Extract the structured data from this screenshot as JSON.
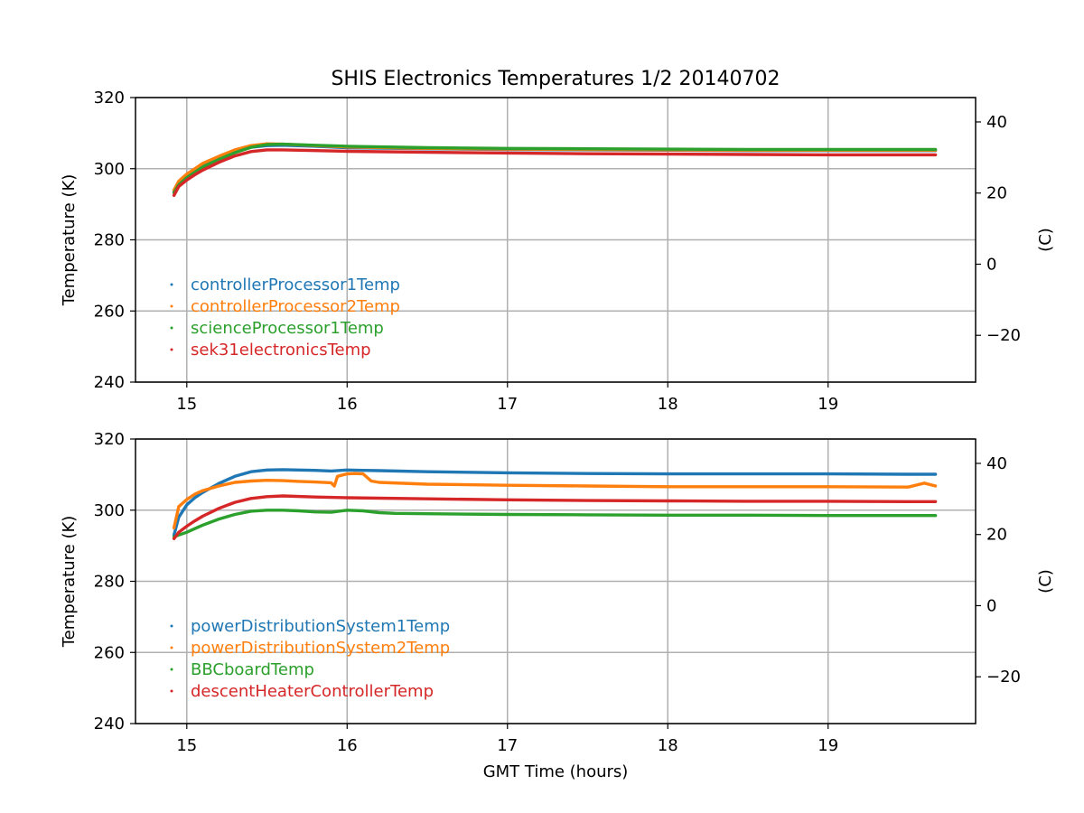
{
  "title": "SHIS Electronics Temperatures 1/2 20140702",
  "xlabel": "GMT Time (hours)",
  "colors": {
    "blue": "#1f77b4",
    "orange": "#ff7f0e",
    "green": "#2ca02c",
    "red": "#d62728"
  },
  "chart_data": [
    {
      "type": "line",
      "ylabel": "Temperature (K)",
      "ylabel_right": "(C)",
      "xlim": [
        14.68,
        19.92
      ],
      "ylim": [
        240,
        320
      ],
      "xticks": [
        15,
        16,
        17,
        18,
        19
      ],
      "yticks": [
        240,
        260,
        280,
        300,
        320
      ],
      "yticks_right": [
        -20,
        0,
        20,
        40
      ],
      "grid": true,
      "legend_position": "lower-left",
      "series": [
        {
          "name": "controllerProcessor1Temp",
          "color": "#1f77b4",
          "x": [
            14.92,
            14.95,
            15.0,
            15.05,
            15.1,
            15.2,
            15.3,
            15.4,
            15.5,
            15.6,
            15.8,
            16.0,
            16.5,
            17.0,
            17.5,
            18.0,
            18.5,
            19.0,
            19.5,
            19.67
          ],
          "y": [
            293.5,
            296,
            298,
            299.5,
            301,
            303,
            304.8,
            306,
            306.5,
            306.6,
            306.3,
            305.9,
            305.6,
            305.4,
            305.3,
            305.2,
            305.1,
            305.1,
            305.1,
            305.1
          ]
        },
        {
          "name": "controllerProcessor2Temp",
          "color": "#ff7f0e",
          "x": [
            14.92,
            14.95,
            15.0,
            15.05,
            15.1,
            15.2,
            15.3,
            15.4,
            15.5,
            15.6,
            15.8,
            16.0,
            16.5,
            17.0,
            17.5,
            18.0,
            18.5,
            19.0,
            19.5,
            19.67
          ],
          "y": [
            294,
            296.5,
            298.5,
            300,
            301.5,
            303.5,
            305.3,
            306.5,
            307,
            306.9,
            306.5,
            306.1,
            305.7,
            305.5,
            305.4,
            305.3,
            305.2,
            305.2,
            305.2,
            305.2
          ]
        },
        {
          "name": "scienceProcessor1Temp",
          "color": "#2ca02c",
          "x": [
            14.92,
            14.95,
            15.0,
            15.05,
            15.1,
            15.2,
            15.3,
            15.4,
            15.5,
            15.6,
            15.8,
            16.0,
            16.5,
            17.0,
            17.5,
            18.0,
            18.5,
            19.0,
            19.5,
            19.67
          ],
          "y": [
            293.2,
            295.5,
            297.5,
            299,
            300.5,
            302.6,
            304.5,
            306,
            306.8,
            306.9,
            306.6,
            306.3,
            305.9,
            305.7,
            305.6,
            305.5,
            305.4,
            305.4,
            305.4,
            305.4
          ]
        },
        {
          "name": "sek31electronicsTemp",
          "color": "#d62728",
          "x": [
            14.92,
            14.95,
            15.0,
            15.05,
            15.1,
            15.2,
            15.3,
            15.4,
            15.5,
            15.6,
            15.8,
            16.0,
            16.5,
            17.0,
            17.5,
            18.0,
            18.5,
            19.0,
            19.5,
            19.67
          ],
          "y": [
            292.5,
            295,
            296.8,
            298.3,
            299.6,
            301.8,
            303.6,
            304.8,
            305.3,
            305.3,
            305.1,
            304.9,
            304.6,
            304.4,
            304.2,
            304.1,
            304.0,
            303.9,
            303.9,
            303.9
          ]
        }
      ]
    },
    {
      "type": "line",
      "ylabel": "Temperature (K)",
      "ylabel_right": "(C)",
      "xlim": [
        14.68,
        19.92
      ],
      "ylim": [
        240,
        320
      ],
      "xticks": [
        15,
        16,
        17,
        18,
        19
      ],
      "yticks": [
        240,
        260,
        280,
        300,
        320
      ],
      "yticks_right": [
        -20,
        0,
        20,
        40
      ],
      "grid": true,
      "legend_position": "lower-left",
      "series": [
        {
          "name": "powerDistributionSystem1Temp",
          "color": "#1f77b4",
          "x": [
            14.92,
            14.95,
            15.0,
            15.05,
            15.1,
            15.2,
            15.3,
            15.4,
            15.5,
            15.6,
            15.7,
            15.8,
            15.9,
            16.0,
            16.1,
            16.2,
            16.5,
            17.0,
            17.5,
            18.0,
            18.5,
            19.0,
            19.5,
            19.67
          ],
          "y": [
            293,
            298,
            301.5,
            303.5,
            305,
            307.5,
            309.5,
            310.8,
            311.3,
            311.4,
            311.3,
            311.2,
            311.0,
            311.3,
            311.2,
            311.1,
            310.8,
            310.5,
            310.3,
            310.2,
            310.2,
            310.2,
            310.1,
            310.1
          ]
        },
        {
          "name": "powerDistributionSystem2Temp",
          "color": "#ff7f0e",
          "x": [
            14.92,
            14.95,
            15.0,
            15.05,
            15.1,
            15.2,
            15.3,
            15.4,
            15.5,
            15.6,
            15.7,
            15.8,
            15.9,
            15.92,
            15.94,
            16.0,
            16.05,
            16.1,
            16.15,
            16.2,
            16.5,
            17.0,
            17.5,
            18.0,
            18.5,
            19.0,
            19.5,
            19.6,
            19.67
          ],
          "y": [
            295,
            301,
            303,
            304.5,
            305.5,
            306.8,
            307.8,
            308.2,
            308.4,
            308.3,
            308.1,
            307.9,
            307.7,
            306.8,
            309.5,
            310.2,
            310.3,
            310.2,
            308.2,
            307.8,
            307.3,
            307.0,
            306.8,
            306.6,
            306.6,
            306.6,
            306.5,
            307.6,
            306.8
          ]
        },
        {
          "name": "BBCboardTemp",
          "color": "#2ca02c",
          "x": [
            14.92,
            14.95,
            15.0,
            15.05,
            15.1,
            15.2,
            15.3,
            15.4,
            15.5,
            15.6,
            15.7,
            15.8,
            15.9,
            16.0,
            16.1,
            16.2,
            16.3,
            16.5,
            17.0,
            17.5,
            18.0,
            18.5,
            19.0,
            19.5,
            19.67
          ],
          "y": [
            292.5,
            293,
            293.8,
            294.8,
            295.8,
            297.5,
            298.8,
            299.7,
            300.0,
            300.0,
            299.8,
            299.5,
            299.4,
            300.0,
            299.8,
            299.3,
            299.1,
            299.0,
            298.8,
            298.7,
            298.6,
            298.6,
            298.5,
            298.5,
            298.5
          ]
        },
        {
          "name": "descentHeaterControllerTemp",
          "color": "#d62728",
          "x": [
            14.92,
            14.95,
            15.0,
            15.05,
            15.1,
            15.2,
            15.3,
            15.4,
            15.5,
            15.6,
            15.8,
            16.0,
            16.5,
            17.0,
            17.5,
            18.0,
            18.5,
            19.0,
            19.5,
            19.67
          ],
          "y": [
            292,
            293.8,
            295.5,
            297,
            298.3,
            300.5,
            302.2,
            303.3,
            303.8,
            304.0,
            303.7,
            303.5,
            303.2,
            302.9,
            302.7,
            302.6,
            302.5,
            302.5,
            302.4,
            302.4
          ]
        }
      ]
    }
  ]
}
